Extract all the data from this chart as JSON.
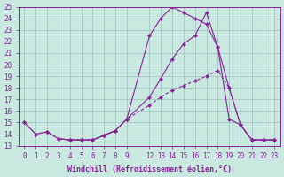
{
  "bg_color": "#c8e8e0",
  "line_color": "#882299",
  "grid_color": "#9bbfba",
  "ylim": [
    13,
    25
  ],
  "yticks": [
    13,
    14,
    15,
    16,
    17,
    18,
    19,
    20,
    21,
    22,
    23,
    24,
    25
  ],
  "xlabel": "Windchill (Refroidissement éolien,°C)",
  "x_labels": [
    "0",
    "1",
    "2",
    "3",
    "4",
    "5",
    "6",
    "7",
    "8",
    "9",
    "",
    "",
    "12",
    "13",
    "14",
    "15",
    "16",
    "17",
    "18",
    "19",
    "20",
    "21",
    "22",
    "23"
  ],
  "x_display_labels": [
    "0",
    "1",
    "2",
    "3",
    "4",
    "5",
    "6",
    "7",
    "8",
    "9",
    "12",
    "13",
    "14",
    "15",
    "16",
    "17",
    "18",
    "19",
    "20",
    "21",
    "22",
    "23"
  ],
  "x_positions": [
    0,
    1,
    2,
    3,
    4,
    5,
    6,
    7,
    8,
    9,
    12,
    13,
    14,
    15,
    16,
    17,
    18,
    19,
    20,
    21,
    22,
    23
  ],
  "line1_x": [
    0,
    1,
    2,
    3,
    4,
    5,
    6,
    7,
    8,
    9,
    12,
    13,
    14,
    15,
    16,
    17,
    18,
    19,
    20,
    21,
    22,
    23
  ],
  "line1_y": [
    15.0,
    14.0,
    14.2,
    13.6,
    13.5,
    13.5,
    13.5,
    13.9,
    14.3,
    15.3,
    22.5,
    24.0,
    25.0,
    24.5,
    24.0,
    23.5,
    21.5,
    18.0,
    14.8,
    13.5,
    13.5,
    13.5
  ],
  "line2_x": [
    0,
    1,
    2,
    3,
    4,
    5,
    6,
    7,
    8,
    9,
    12,
    13,
    14,
    15,
    16,
    17,
    18,
    19,
    20,
    21,
    22,
    23
  ],
  "line2_y": [
    15.0,
    14.0,
    14.2,
    13.6,
    13.5,
    13.5,
    13.5,
    13.9,
    14.3,
    15.3,
    16.5,
    17.2,
    17.8,
    18.2,
    18.6,
    19.0,
    19.5,
    18.0,
    14.8,
    13.5,
    13.5,
    13.5
  ],
  "line3_x": [
    3,
    4,
    5,
    6,
    7,
    8,
    9,
    12,
    13,
    14,
    15,
    16,
    17,
    18,
    19,
    20,
    21,
    22,
    23
  ],
  "line3_y": [
    13.6,
    13.5,
    13.5,
    13.5,
    13.9,
    14.3,
    15.3,
    17.2,
    18.8,
    20.5,
    21.8,
    22.5,
    24.5,
    21.5,
    15.3,
    14.8,
    13.5,
    13.5,
    13.5
  ],
  "tick_fontsize": 5.5,
  "label_fontsize": 6.0
}
